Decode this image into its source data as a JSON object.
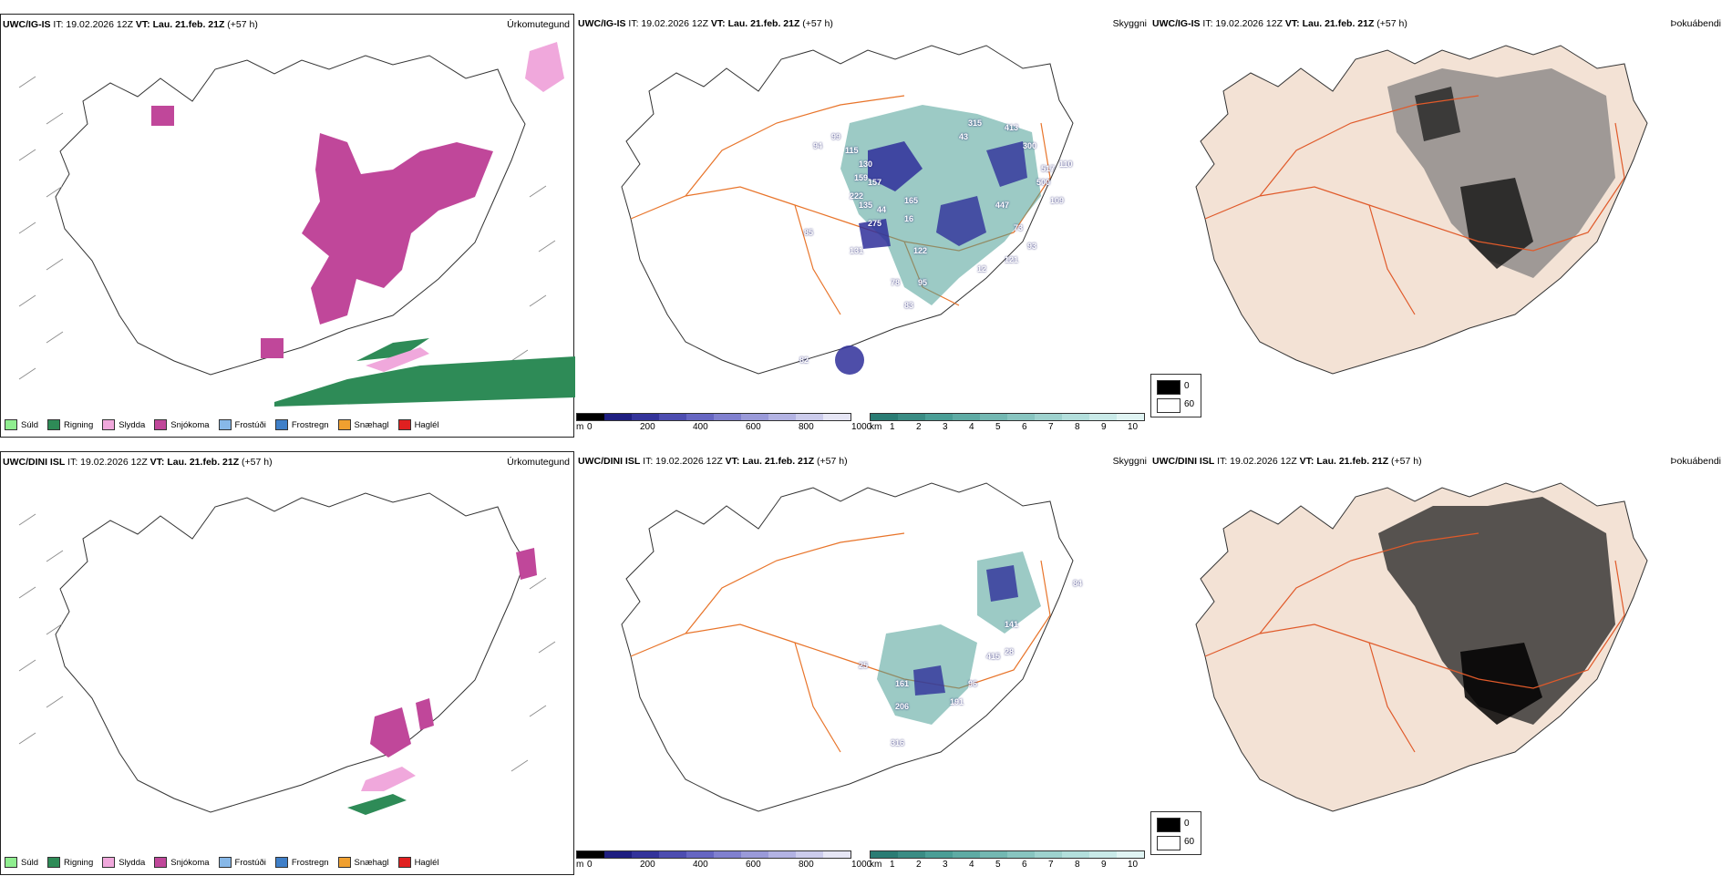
{
  "rows": [
    {
      "model": "UWC/IG-IS",
      "it": "IT: 19.02.2026 12Z",
      "vt_label": "VT:",
      "vt": "Lau. 21.feb. 21Z",
      "lead": "(+57 h)",
      "titles": {
        "precip": "Úrkomutegund",
        "vis": "Skyggni",
        "fog": "Þokuábendi"
      },
      "vis_labels": [
        "94",
        "99",
        "115",
        "130",
        "159",
        "157",
        "222",
        "135",
        "85",
        "131",
        "16",
        "44",
        "275",
        "165",
        "122",
        "78",
        "95",
        "83",
        "82",
        "315",
        "43",
        "300",
        "109",
        "447",
        "73",
        "93",
        "121",
        "12",
        "500",
        "517",
        "413",
        "110"
      ]
    },
    {
      "model": "UWC/DINI ISL",
      "it": "IT: 19.02.2026 12Z",
      "vt_label": "VT:",
      "vt": "Lau. 21.feb. 21Z",
      "lead": "(+57 h)",
      "titles": {
        "precip": "Úrkomutegund",
        "vis": "Skyggni",
        "fog": "Þokuábendi"
      },
      "vis_labels": [
        "161",
        "206",
        "191",
        "316",
        "96",
        "415",
        "28",
        "141",
        "84",
        "25"
      ]
    }
  ],
  "precip_legend": [
    {
      "label": "Súld",
      "color": "#90ee90"
    },
    {
      "label": "Rigning",
      "color": "#2e8b57"
    },
    {
      "label": "Slydda",
      "color": "#f0a8dc"
    },
    {
      "label": "Snjókoma",
      "color": "#c0479a"
    },
    {
      "label": "Frostúði",
      "color": "#87b8e8"
    },
    {
      "label": "Frostregn",
      "color": "#3f7fc8"
    },
    {
      "label": "Snæhagl",
      "color": "#f0a030"
    },
    {
      "label": "Haglél",
      "color": "#e02020"
    }
  ],
  "height_scale": {
    "unit": "m",
    "ticks": [
      "0",
      "200",
      "400",
      "600",
      "800",
      "1000"
    ]
  },
  "vis_scale": {
    "unit": "km",
    "ticks": [
      "1",
      "2",
      "3",
      "4",
      "5",
      "6",
      "7",
      "8",
      "9",
      "10"
    ]
  },
  "fog_key": {
    "ticks": [
      "0",
      "60"
    ]
  },
  "colors": {
    "snow": "#c0479a",
    "rain": "#2e8b57",
    "sleet": "#f0a8dc",
    "roads": "#e8742a",
    "land_fog": "#f3e2d5",
    "vis_teal": "#4a9e96",
    "vis_blue": "#2f2f9a"
  }
}
